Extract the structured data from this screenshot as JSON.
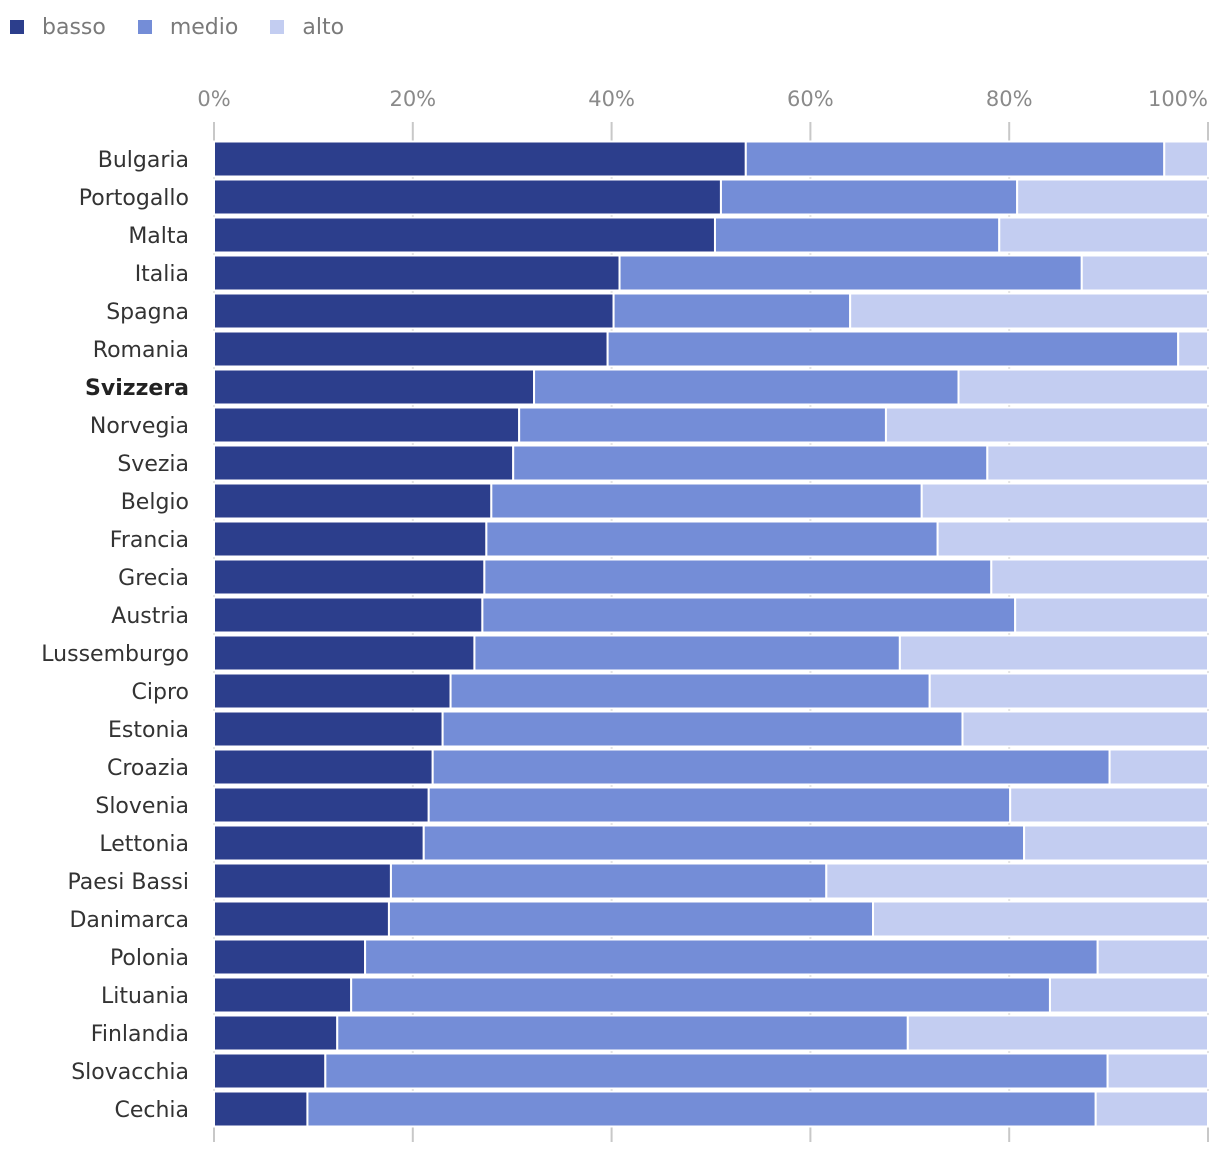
{
  "legend": [
    {
      "label": "basso",
      "color": "#2c3e8c"
    },
    {
      "label": "medio",
      "color": "#748dd7"
    },
    {
      "label": "alto",
      "color": "#c3cdf1"
    }
  ],
  "chart_data": {
    "type": "bar",
    "orientation": "horizontal",
    "stacked": true,
    "x_ticks": [
      "0%",
      "20%",
      "40%",
      "60%",
      "80%",
      "100%"
    ],
    "xlim": [
      0,
      100
    ],
    "grid": true,
    "legend_position": "top-left",
    "highlight": "Svizzera",
    "categories": [
      "Bulgaria",
      "Portogallo",
      "Malta",
      "Italia",
      "Spagna",
      "Romania",
      "Svizzera",
      "Norvegia",
      "Svezia",
      "Belgio",
      "Francia",
      "Grecia",
      "Austria",
      "Lussemburgo",
      "Cipro",
      "Estonia",
      "Croazia",
      "Slovenia",
      "Lettonia",
      "Paesi Bassi",
      "Danimarca",
      "Polonia",
      "Lituania",
      "Finlandia",
      "Slovacchia",
      "Cechia"
    ],
    "series": [
      {
        "name": "basso",
        "color": "#2c3e8c",
        "values": [
          53.5,
          51.0,
          50.4,
          40.8,
          40.2,
          39.6,
          32.2,
          30.7,
          30.1,
          27.9,
          27.4,
          27.2,
          27.0,
          26.2,
          23.8,
          23.0,
          22.0,
          21.6,
          21.1,
          17.8,
          17.6,
          15.2,
          13.8,
          12.4,
          11.2,
          9.4
        ]
      },
      {
        "name": "medio",
        "color": "#748dd7",
        "values": [
          42.1,
          29.8,
          28.6,
          46.5,
          23.8,
          57.4,
          42.7,
          36.9,
          47.7,
          43.3,
          45.4,
          51.0,
          53.6,
          42.8,
          48.2,
          52.3,
          68.1,
          58.5,
          60.4,
          43.8,
          48.7,
          73.7,
          70.3,
          57.4,
          78.7,
          79.3
        ]
      },
      {
        "name": "alto",
        "color": "#c3cdf1",
        "values": [
          4.4,
          19.2,
          21.0,
          12.7,
          36.0,
          3.0,
          25.1,
          32.4,
          22.2,
          28.8,
          27.2,
          21.8,
          19.4,
          31.0,
          28.0,
          24.7,
          9.9,
          19.9,
          18.5,
          38.4,
          33.7,
          11.1,
          15.9,
          30.2,
          10.1,
          11.3
        ]
      }
    ]
  }
}
